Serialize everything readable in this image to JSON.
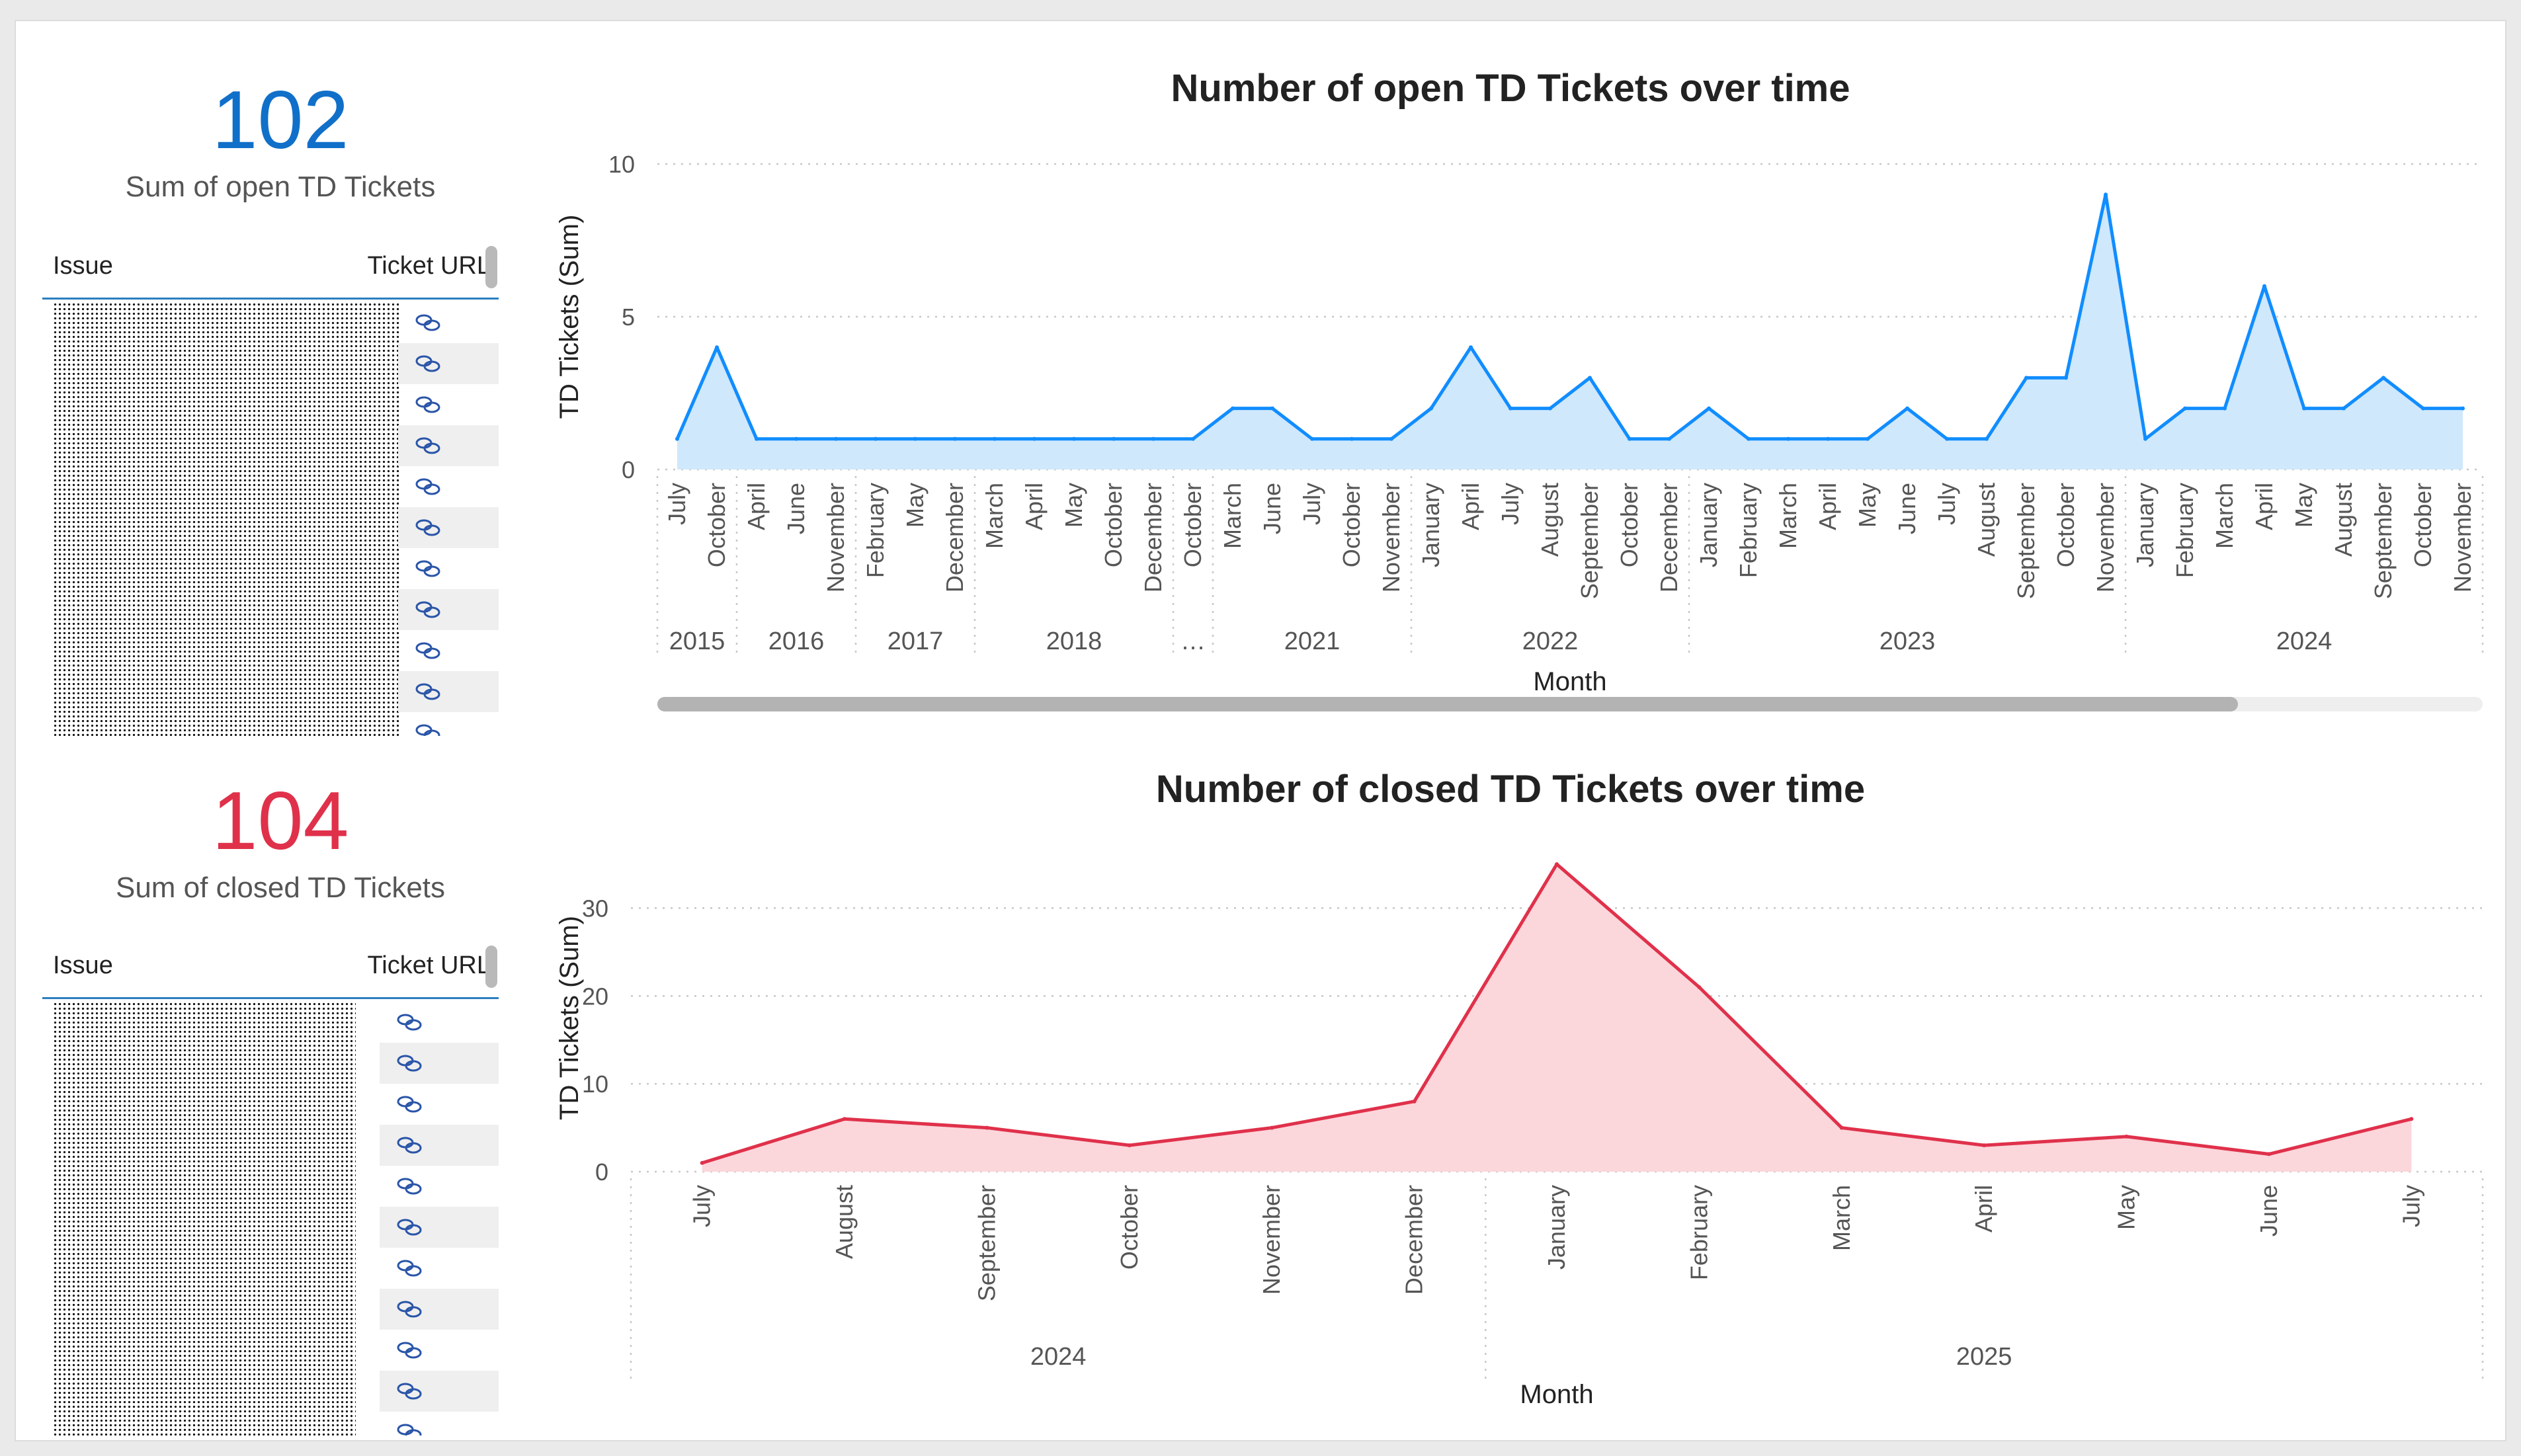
{
  "open_kpi": {
    "value": "102",
    "label": "Sum of open TD Tickets",
    "color": "#1070c9"
  },
  "closed_kpi": {
    "value": "104",
    "label": "Sum of closed TD Tickets",
    "color": "#e0314b"
  },
  "open_table": {
    "col_issue": "Issue",
    "col_url": "Ticket URL",
    "link_icon": "link-icon"
  },
  "closed_table": {
    "col_issue": "Issue",
    "col_url": "Ticket URL",
    "link_icon": "link-icon"
  },
  "colors": {
    "open_line": "#118dff",
    "open_fill": "#cfe8fb",
    "closed_line": "#e0314b",
    "closed_fill": "#fbd6db"
  },
  "chart_data": [
    {
      "type": "area",
      "title": "Number of open TD Tickets over time",
      "xlabel": "Month",
      "ylabel": "TD Tickets (Sum)",
      "ylim": [
        0,
        10
      ],
      "yticks": [
        0,
        5,
        10
      ],
      "grid": true,
      "categories": [
        "July",
        "October",
        "April",
        "June",
        "November",
        "February",
        "May",
        "December",
        "March",
        "April",
        "May",
        "October",
        "December",
        "October",
        "March",
        "June",
        "July",
        "October",
        "November",
        "January",
        "April",
        "July",
        "August",
        "September",
        "October",
        "December",
        "January",
        "February",
        "March",
        "April",
        "May",
        "June",
        "July",
        "August",
        "September",
        "October",
        "November",
        "January",
        "February",
        "March",
        "April",
        "May",
        "August",
        "September",
        "October",
        "November"
      ],
      "years": [
        {
          "label": "2015",
          "from": 0,
          "to": 1
        },
        {
          "label": "2016",
          "from": 2,
          "to": 4
        },
        {
          "label": "2017",
          "from": 5,
          "to": 7
        },
        {
          "label": "2018",
          "from": 8,
          "to": 12
        },
        {
          "label": "…",
          "from": 13,
          "to": 13
        },
        {
          "label": "2021",
          "from": 14,
          "to": 18
        },
        {
          "label": "2022",
          "from": 19,
          "to": 25
        },
        {
          "label": "2023",
          "from": 26,
          "to": 36
        },
        {
          "label": "2024",
          "from": 37,
          "to": 45
        }
      ],
      "values": [
        1,
        4,
        1,
        1,
        1,
        1,
        1,
        1,
        1,
        1,
        1,
        1,
        1,
        1,
        2,
        2,
        1,
        1,
        1,
        2,
        4,
        2,
        2,
        3,
        1,
        1,
        2,
        1,
        1,
        1,
        1,
        2,
        1,
        1,
        3,
        3,
        9,
        1,
        2,
        2,
        6,
        2,
        2,
        3,
        2,
        2
      ]
    },
    {
      "type": "area",
      "title": "Number of closed TD Tickets over time",
      "xlabel": "Month",
      "ylabel": "TD Tickets (Sum)",
      "ylim": [
        0,
        35
      ],
      "yticks": [
        0,
        10,
        20,
        30
      ],
      "grid": true,
      "categories": [
        "July",
        "August",
        "September",
        "October",
        "November",
        "December",
        "January",
        "February",
        "March",
        "April",
        "May",
        "June",
        "July"
      ],
      "years": [
        {
          "label": "2024",
          "from": 0,
          "to": 5
        },
        {
          "label": "2025",
          "from": 6,
          "to": 12
        }
      ],
      "values": [
        1,
        6,
        5,
        3,
        5,
        8,
        35,
        21,
        5,
        3,
        4,
        2,
        6
      ]
    }
  ]
}
